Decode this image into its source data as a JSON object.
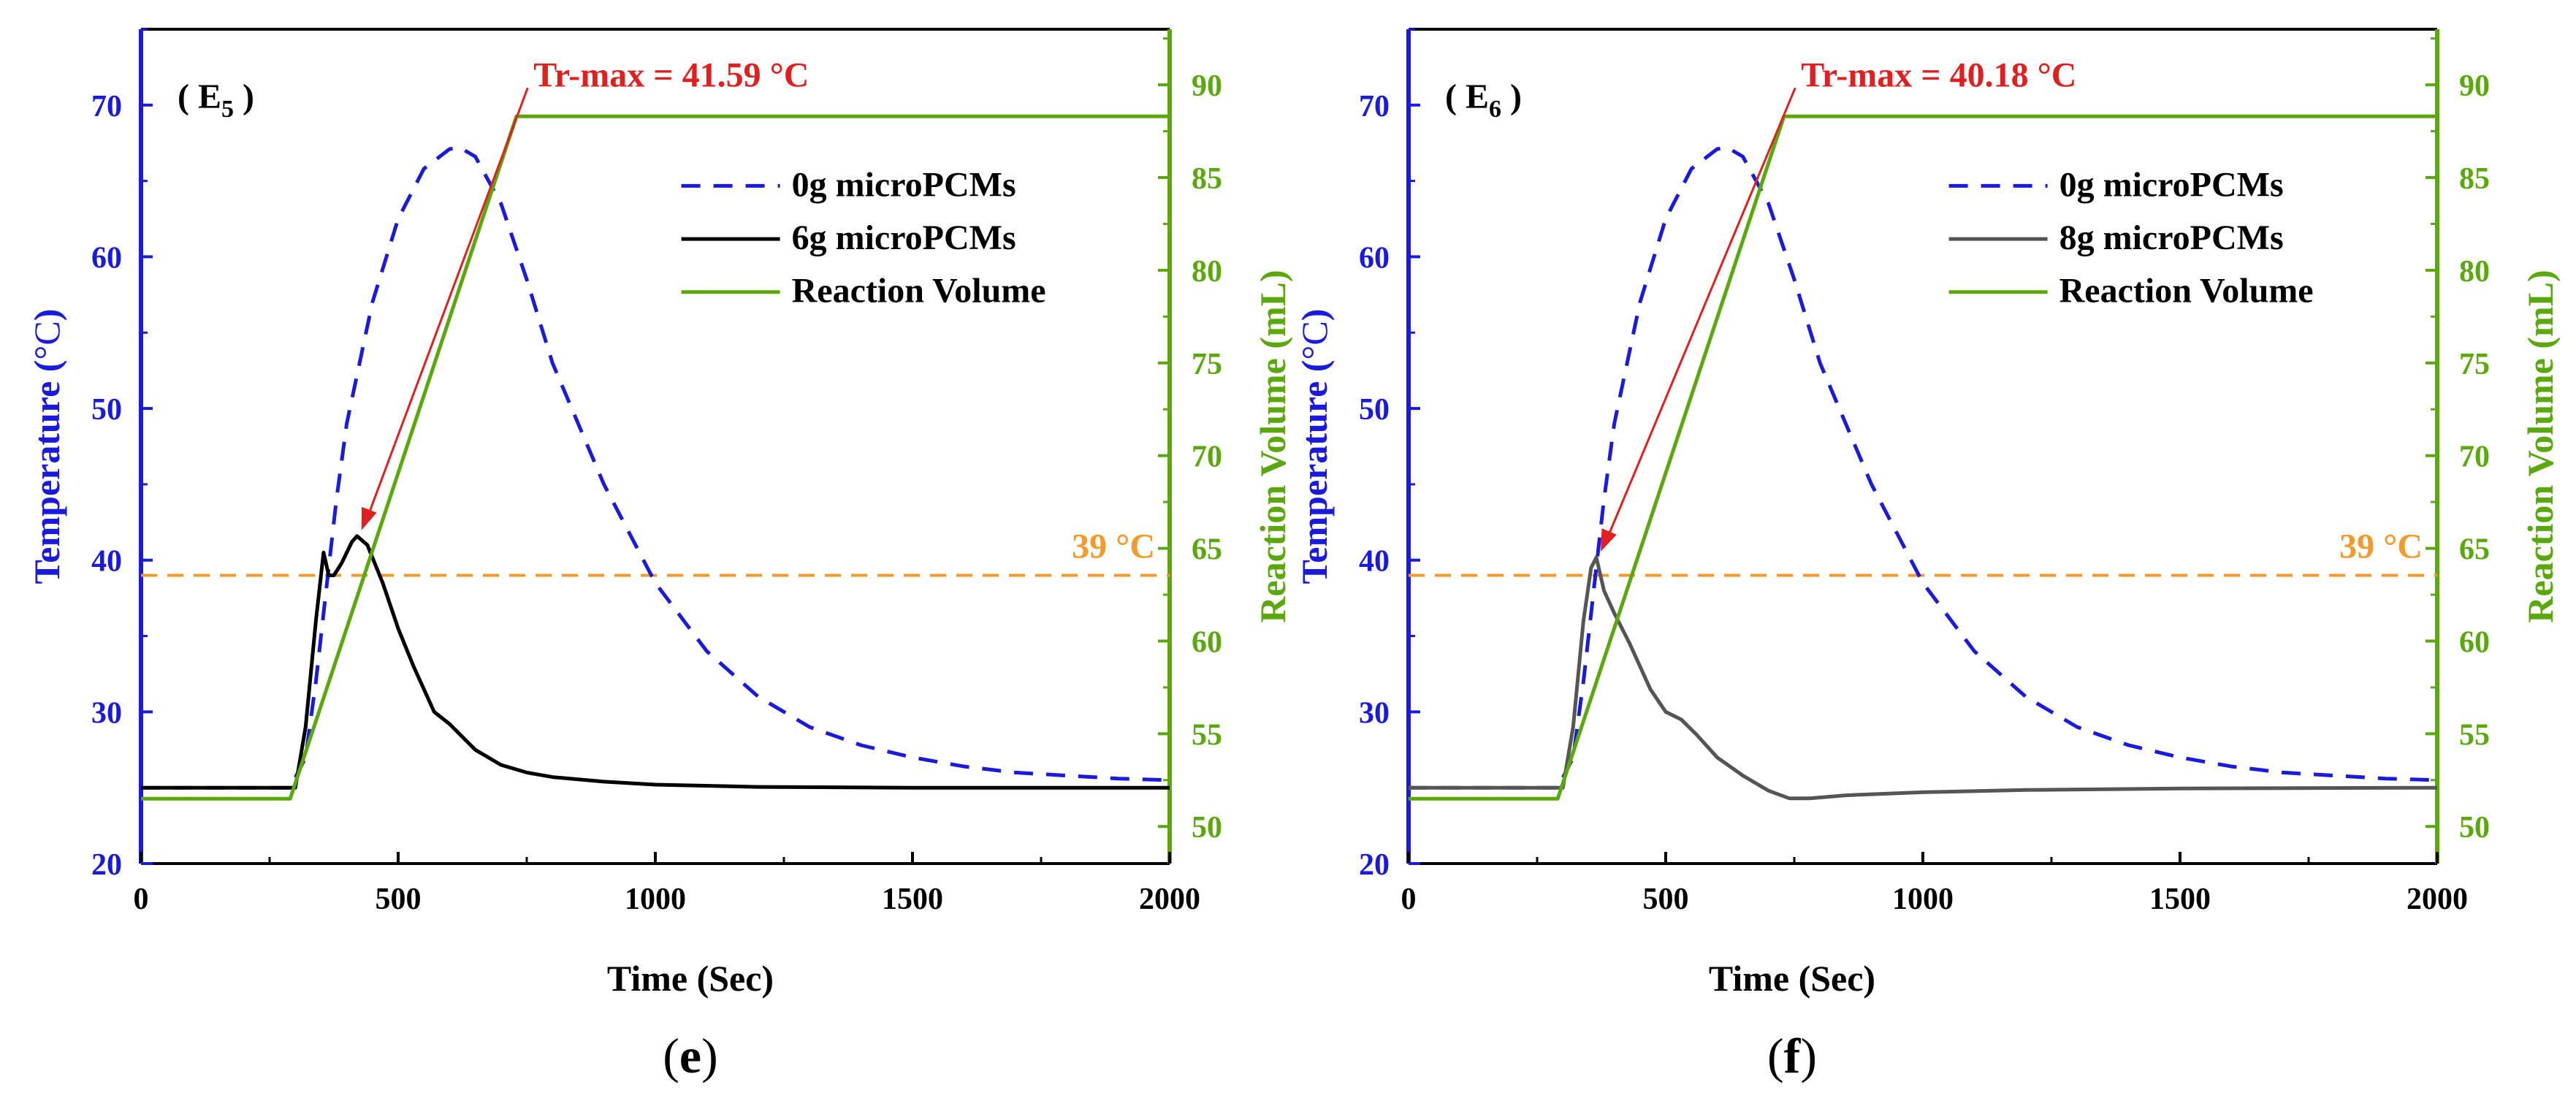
{
  "colors": {
    "left_axis": "#1a1adc",
    "right_axis": "#5aa80e",
    "series_0g": "#1a1adc",
    "series_pcm_e5": "#000000",
    "series_pcm_e6": "#555555",
    "volume": "#5aa80e",
    "threshold": "#f49a2c",
    "annotation": "#e02020"
  },
  "chart_data": [
    {
      "type": "line",
      "panel_label": "( E",
      "panel_sub": "5",
      "panel_close": " )",
      "caption_open": "(",
      "caption_letter": "e",
      "caption_close": ")",
      "xlabel": "Time (Sec)",
      "ylabel": "Temperature (°C)",
      "ylabel_main": "Temperature (",
      "ylabel_unit": "°C",
      "ylabel_close": ")",
      "y2label": "Reaction Volume (mL)",
      "xlim": [
        0,
        2000
      ],
      "ylim": [
        20,
        75
      ],
      "y2lim": [
        48,
        93
      ],
      "xticks": [
        "0",
        "500",
        "1000",
        "1500",
        "2000"
      ],
      "xtick_values": [
        0,
        500,
        1000,
        1500,
        2000
      ],
      "yticks": [
        "20",
        "30",
        "40",
        "50",
        "60",
        "70"
      ],
      "ytick_values": [
        20,
        30,
        40,
        50,
        60,
        70
      ],
      "y2ticks": [
        "50",
        "55",
        "60",
        "65",
        "70",
        "75",
        "80",
        "85",
        "90"
      ],
      "y2tick_values": [
        50,
        55,
        60,
        65,
        70,
        75,
        80,
        85,
        90
      ],
      "threshold": {
        "value": 39,
        "label": "39 °C"
      },
      "annotation": {
        "text": "Tr-max = 41.59 °C",
        "x": 420,
        "y": 41.59,
        "text_x": 820,
        "text_y": 72
      },
      "legend": [
        "0g microPCMs",
        "6g microPCMs",
        "Reaction Volume"
      ],
      "series": [
        {
          "name": "0g microPCMs",
          "axis": "left",
          "style": "dashed",
          "x": [
            0,
            290,
            320,
            340,
            360,
            380,
            400,
            450,
            500,
            550,
            600,
            620,
            650,
            700,
            750,
            800,
            900,
            1000,
            1100,
            1200,
            1300,
            1400,
            1500,
            1600,
            1700,
            1800,
            1900,
            2000
          ],
          "y": [
            25,
            25,
            27,
            32,
            38,
            44,
            49,
            57,
            62.5,
            65.8,
            67.1,
            67.2,
            66.6,
            63.5,
            58.5,
            53,
            45,
            38.5,
            34,
            31,
            29,
            27.8,
            27,
            26.4,
            26,
            25.8,
            25.6,
            25.5
          ]
        },
        {
          "name": "6g microPCMs",
          "axis": "left",
          "style": "solid",
          "x": [
            0,
            300,
            320,
            340,
            355,
            365,
            375,
            390,
            410,
            420,
            440,
            470,
            500,
            530,
            570,
            600,
            650,
            700,
            750,
            800,
            900,
            1000,
            1200,
            1500,
            2000
          ],
          "y": [
            25,
            25,
            29,
            36,
            40.5,
            39,
            39,
            39.8,
            41.2,
            41.59,
            41,
            38.5,
            35.5,
            33,
            30,
            29.2,
            27.5,
            26.5,
            26,
            25.7,
            25.4,
            25.2,
            25.05,
            25,
            25
          ]
        },
        {
          "name": "Reaction Volume",
          "axis": "right",
          "style": "solid",
          "x": [
            0,
            290,
            730,
            2000
          ],
          "y": [
            51.5,
            51.5,
            88.3,
            88.3
          ]
        }
      ]
    },
    {
      "type": "line",
      "panel_label": "( E",
      "panel_sub": "6",
      "panel_close": " )",
      "caption_open": "(",
      "caption_letter": "f",
      "caption_close": ")",
      "xlabel": "Time (Sec)",
      "ylabel": "Temperature (°C)",
      "ylabel_main": "Temperature (",
      "ylabel_unit": "°C",
      "ylabel_close": ")",
      "y2label": "Reaction Volume (mL)",
      "xlim": [
        0,
        2000
      ],
      "ylim": [
        20,
        75
      ],
      "y2lim": [
        48,
        93
      ],
      "xticks": [
        "0",
        "500",
        "1000",
        "1500",
        "2000"
      ],
      "xtick_values": [
        0,
        500,
        1000,
        1500,
        2000
      ],
      "yticks": [
        "20",
        "30",
        "40",
        "50",
        "60",
        "70"
      ],
      "ytick_values": [
        20,
        30,
        40,
        50,
        60,
        70
      ],
      "y2ticks": [
        "50",
        "55",
        "60",
        "65",
        "70",
        "75",
        "80",
        "85",
        "90"
      ],
      "y2tick_values": [
        50,
        55,
        60,
        65,
        70,
        75,
        80,
        85,
        90
      ],
      "threshold": {
        "value": 39,
        "label": "39 °C"
      },
      "annotation": {
        "text": "Tr-max = 40.18 °C",
        "x": 365,
        "y": 40.18,
        "text_x": 820,
        "text_y": 72
      },
      "legend": [
        "0g microPCMs",
        "8g microPCMs",
        "Reaction Volume"
      ],
      "series": [
        {
          "name": "0g microPCMs",
          "axis": "left",
          "style": "dashed",
          "x": [
            0,
            290,
            320,
            340,
            360,
            380,
            400,
            450,
            500,
            550,
            600,
            620,
            650,
            700,
            750,
            800,
            900,
            1000,
            1100,
            1200,
            1300,
            1400,
            1500,
            1600,
            1700,
            1800,
            1900,
            2000
          ],
          "y": [
            25,
            25,
            27,
            32,
            38,
            44,
            49,
            57,
            62.5,
            65.8,
            67.1,
            67.2,
            66.6,
            63.5,
            58.5,
            53,
            45,
            38.5,
            34,
            31,
            29,
            27.8,
            27,
            26.4,
            26,
            25.8,
            25.6,
            25.5
          ]
        },
        {
          "name": "8g microPCMs",
          "axis": "left",
          "style": "solid",
          "x": [
            0,
            300,
            320,
            340,
            355,
            365,
            380,
            400,
            430,
            470,
            500,
            530,
            560,
            600,
            650,
            700,
            740,
            780,
            850,
            1000,
            1200,
            1500,
            2000
          ],
          "y": [
            25,
            25,
            29,
            36,
            39.5,
            40.18,
            38,
            36.5,
            34.5,
            31.5,
            30,
            29.5,
            28.5,
            27,
            25.8,
            24.8,
            24.3,
            24.3,
            24.5,
            24.7,
            24.85,
            24.95,
            25
          ]
        },
        {
          "name": "Reaction Volume",
          "axis": "right",
          "style": "solid",
          "x": [
            0,
            290,
            730,
            2000
          ],
          "y": [
            51.5,
            51.5,
            88.3,
            88.3
          ]
        }
      ]
    }
  ]
}
